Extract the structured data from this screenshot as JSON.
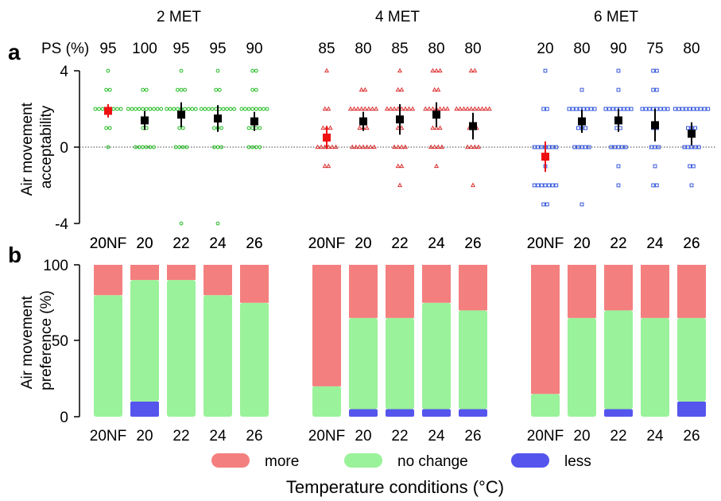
{
  "panel_labels": {
    "a": "a",
    "b": "b"
  },
  "groups": [
    "2 MET",
    "4 MET",
    "6 MET"
  ],
  "ps_label": "PS (%)",
  "x_title": "Temperature conditions (°C)",
  "chart_data": [
    {
      "type": "scatter",
      "panel": "a",
      "ylabel_lines": [
        "Air movement",
        "acceptability"
      ],
      "ylim": [
        -4,
        4
      ],
      "yticks": [
        4,
        0,
        -4
      ],
      "reference_line_y": 0,
      "categories": [
        "20NF",
        "20",
        "22",
        "24",
        "26"
      ],
      "groups": [
        {
          "name": "2 MET",
          "marker": "circle",
          "color": "#22bb22",
          "ps": [
            95,
            100,
            95,
            95,
            90
          ],
          "mean": [
            1.9,
            1.4,
            1.7,
            1.5,
            1.35
          ],
          "error": [
            0.35,
            0.5,
            0.65,
            0.7,
            0.5
          ],
          "highlight": [
            true,
            false,
            false,
            false,
            false
          ],
          "points": [
            {
              "4": 1,
              "3": 2,
              "2": 8,
              "1": 2,
              "0": 1
            },
            {
              "3": 2,
              "2": 10,
              "1": 2,
              "0": 6
            },
            {
              "4": 1,
              "3": 3,
              "2": 9,
              "1": 2,
              "0": 4,
              "-4": 1
            },
            {
              "4": 1,
              "3": 2,
              "2": 10,
              "1": 3,
              "0": 3,
              "-4": 1
            },
            {
              "4": 2,
              "3": 2,
              "2": 8,
              "1": 4,
              "0": 4
            }
          ]
        },
        {
          "name": "4 MET",
          "marker": "triangle",
          "color": "#dd3333",
          "ps": [
            85,
            80,
            85,
            80,
            80
          ],
          "mean": [
            0.5,
            1.35,
            1.45,
            1.7,
            1.1
          ],
          "error": [
            0.6,
            0.5,
            0.8,
            0.65,
            0.7
          ],
          "highlight": [
            true,
            false,
            false,
            false,
            false
          ],
          "points": [
            {
              "4": 1,
              "2": 2,
              "1": 3,
              "0": 6,
              "-1": 2
            },
            {
              "3": 2,
              "2": 8,
              "1": 3,
              "0": 7
            },
            {
              "4": 1,
              "3": 2,
              "2": 8,
              "1": 2,
              "0": 4,
              "-1": 2,
              "-2": 1
            },
            {
              "4": 3,
              "3": 2,
              "2": 7,
              "1": 3,
              "0": 4,
              "-1": 1
            },
            {
              "4": 2,
              "2": 10,
              "1": 3,
              "0": 4,
              "-2": 1
            }
          ]
        },
        {
          "name": "6 MET",
          "marker": "square",
          "color": "#3355dd",
          "ps": [
            20,
            80,
            90,
            75,
            80
          ],
          "mean": [
            -0.5,
            1.35,
            1.4,
            1.15,
            0.7
          ],
          "error": [
            0.8,
            0.6,
            0.6,
            0.85,
            0.6
          ],
          "highlight": [
            true,
            false,
            false,
            false,
            false
          ],
          "points": [
            {
              "4": 1,
              "2": 2,
              "0": 7,
              "-1": 1,
              "-2": 7,
              "-3": 2
            },
            {
              "3": 1,
              "2": 8,
              "1": 3,
              "0": 5,
              "-3": 1
            },
            {
              "4": 1,
              "3": 1,
              "2": 8,
              "1": 2,
              "0": 5,
              "-1": 1,
              "-2": 1
            },
            {
              "4": 2,
              "3": 2,
              "2": 8,
              "1": 2,
              "0": 3,
              "-1": 1,
              "-2": 2
            },
            {
              "2": 10,
              "1": 3,
              "0": 5,
              "-1": 2,
              "-2": 1
            }
          ]
        }
      ]
    },
    {
      "type": "bar",
      "stacked": true,
      "panel": "b",
      "ylabel_lines": [
        "Air movement",
        "preference (%)"
      ],
      "ylim": [
        0,
        100
      ],
      "yticks": [
        100,
        50,
        0
      ],
      "categories": [
        "20NF",
        "20",
        "22",
        "24",
        "26"
      ],
      "legend": [
        {
          "name": "more",
          "color": "#f47f7f"
        },
        {
          "name": "no change",
          "color": "#9af29a"
        },
        {
          "name": "less",
          "color": "#5555ee"
        }
      ],
      "legend_position": "bottom",
      "groups": [
        {
          "name": "2 MET",
          "less": [
            0,
            10,
            0,
            0,
            0
          ],
          "no_change": [
            80,
            80,
            90,
            80,
            75
          ],
          "more": [
            20,
            10,
            10,
            20,
            25
          ]
        },
        {
          "name": "4 MET",
          "less": [
            0,
            5,
            5,
            5,
            5
          ],
          "no_change": [
            20,
            60,
            60,
            70,
            65
          ],
          "more": [
            80,
            35,
            35,
            25,
            30
          ]
        },
        {
          "name": "6 MET",
          "less": [
            0,
            0,
            5,
            0,
            10
          ],
          "no_change": [
            15,
            65,
            65,
            65,
            55
          ],
          "more": [
            85,
            35,
            30,
            35,
            35
          ]
        }
      ]
    }
  ]
}
